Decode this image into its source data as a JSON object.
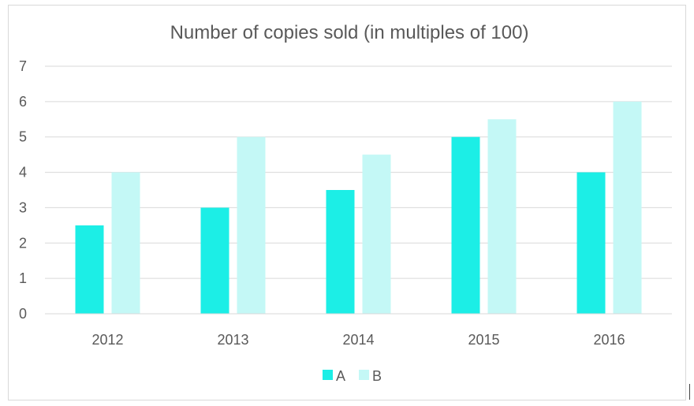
{
  "chart_data": {
    "type": "bar",
    "title": "Number of copies sold (in multiples of 100)",
    "xlabel": "",
    "ylabel": "",
    "categories": [
      "2012",
      "2013",
      "2014",
      "2015",
      "2016"
    ],
    "series": [
      {
        "name": "A",
        "values": [
          2.5,
          3,
          3.5,
          5,
          4
        ],
        "color": "#1ceee6"
      },
      {
        "name": "B",
        "values": [
          4,
          5,
          4.5,
          5.5,
          6
        ],
        "color": "#c4f8f6"
      }
    ],
    "ylim": [
      0,
      7
    ],
    "yticks": [
      "0",
      "1",
      "2",
      "3",
      "4",
      "5",
      "6",
      "7"
    ],
    "grid": true,
    "legend_position": "bottom"
  }
}
